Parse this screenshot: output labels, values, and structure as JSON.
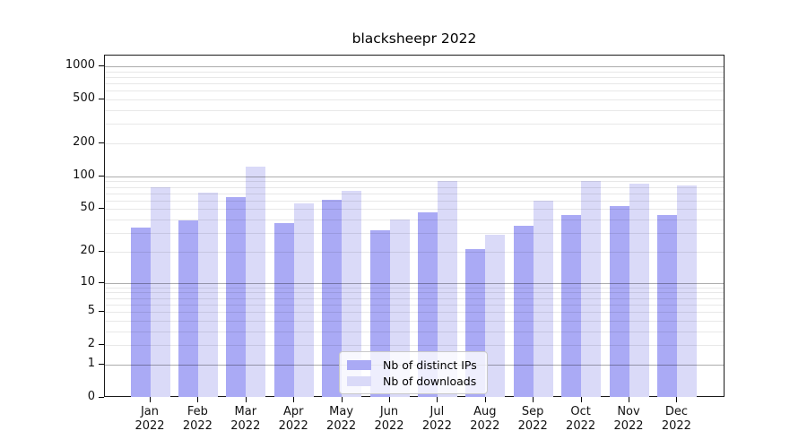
{
  "title": "blacksheepr 2022",
  "colors": {
    "ips": "#aaaaf5",
    "downloads": "#dadaf8",
    "grid_major": "rgba(0,0,0,0.32)",
    "grid_minor": "rgba(0,0,0,0.09)",
    "axis": "#1a1a1a"
  },
  "legend": {
    "items": [
      {
        "key": "ips",
        "label": "Nb of distinct IPs"
      },
      {
        "key": "downloads",
        "label": "Nb of downloads"
      }
    ]
  },
  "y_axis": {
    "tick_values": [
      1000,
      500,
      200,
      100,
      50,
      20,
      10,
      5,
      2,
      1,
      0
    ]
  },
  "x_axis": {
    "months": [
      "Jan",
      "Feb",
      "Mar",
      "Apr",
      "May",
      "Jun",
      "Jul",
      "Aug",
      "Sep",
      "Oct",
      "Nov",
      "Dec"
    ],
    "year": "2022"
  },
  "chart_data": {
    "type": "bar",
    "title": "blacksheepr 2022",
    "categories": [
      "Jan 2022",
      "Feb 2022",
      "Mar 2022",
      "Apr 2022",
      "May 2022",
      "Jun 2022",
      "Jul 2022",
      "Aug 2022",
      "Sep 2022",
      "Oct 2022",
      "Nov 2022",
      "Dec 2022"
    ],
    "series": [
      {
        "name": "Nb of distinct IPs",
        "values": [
          34,
          39,
          64,
          37,
          61,
          32,
          47,
          21,
          35,
          44,
          53,
          44
        ]
      },
      {
        "name": "Nb of downloads",
        "values": [
          80,
          71,
          122,
          56,
          74,
          40,
          90,
          29,
          60,
          91,
          86,
          83
        ]
      }
    ],
    "xlabel": "",
    "ylabel": "",
    "yscale": "log1p",
    "ylim": [
      0,
      1200
    ],
    "ytick_labels": [
      "0",
      "1",
      "2",
      "5",
      "10",
      "20",
      "50",
      "100",
      "200",
      "500",
      "1000"
    ],
    "grid": true,
    "legend_position": "lower center"
  }
}
